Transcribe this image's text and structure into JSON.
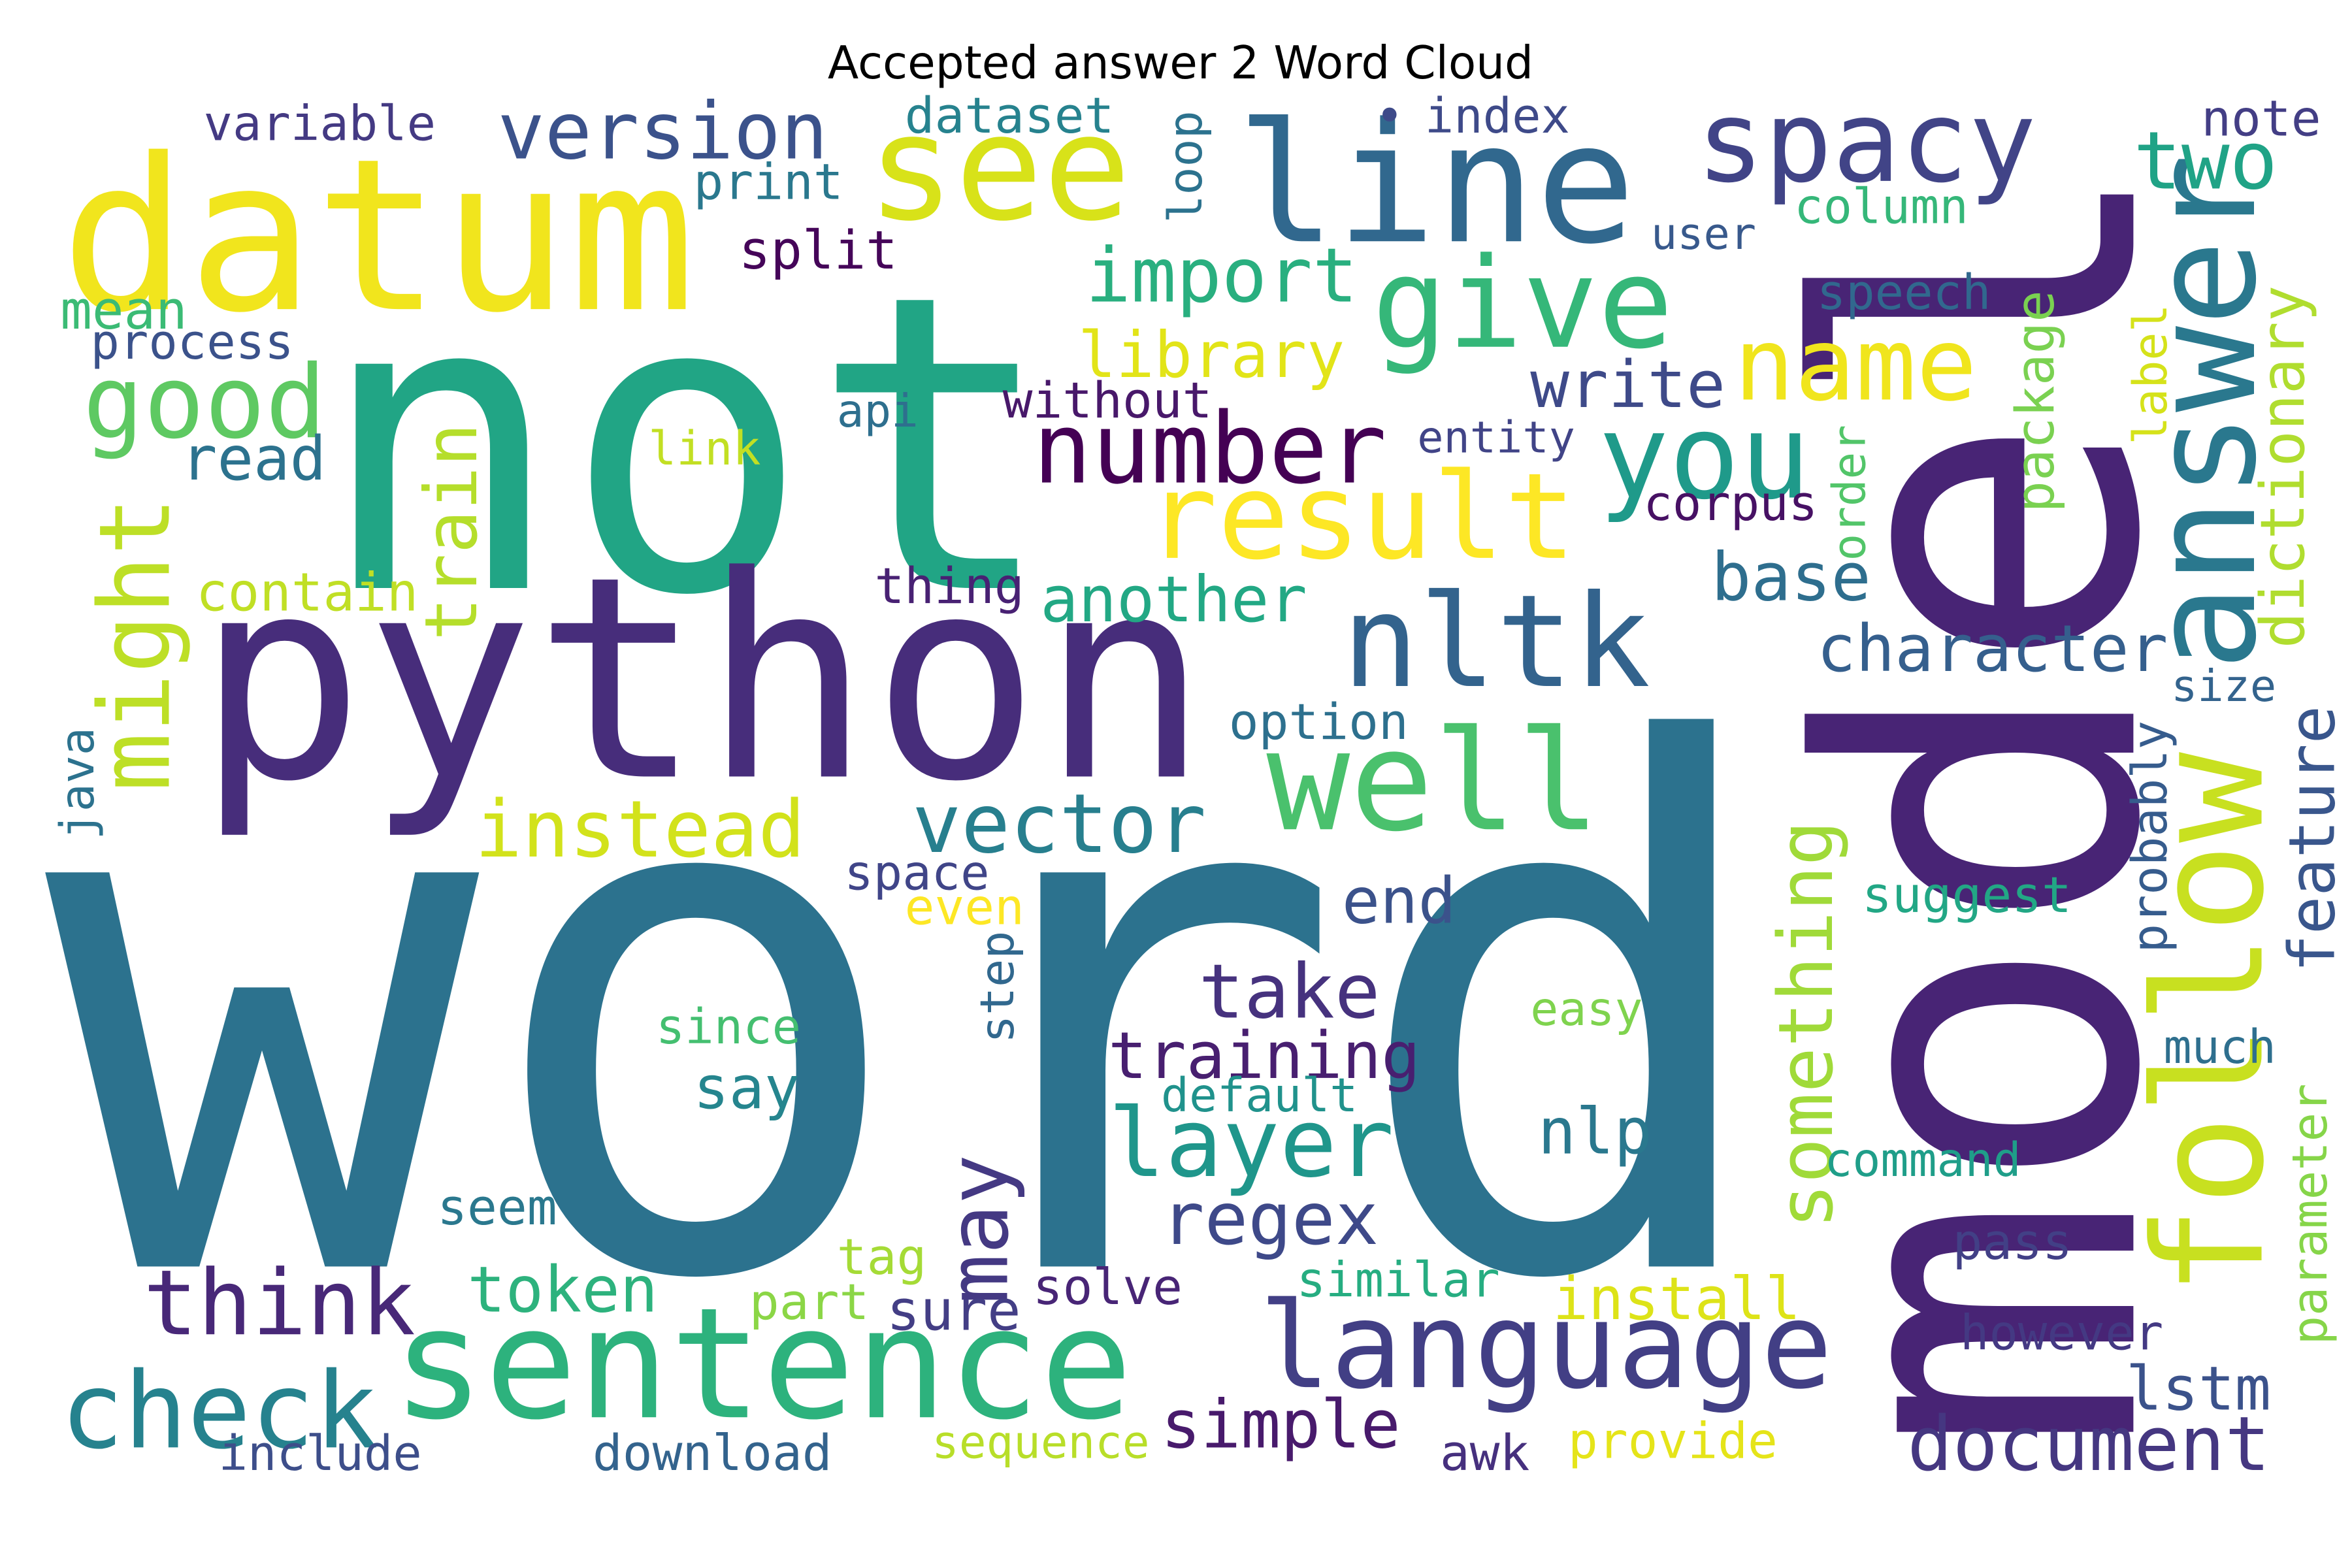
{
  "title": "Accepted answer 2 Word Cloud",
  "words": [
    {
      "text": "word",
      "color": "#2c728e"
    },
    {
      "text": "not",
      "color": "#21a585"
    },
    {
      "text": "python",
      "color": "#472d7b"
    },
    {
      "text": "model",
      "color": "#482475"
    },
    {
      "text": "datum",
      "color": "#f1e51d"
    },
    {
      "text": "line",
      "color": "#31688e"
    },
    {
      "text": "see",
      "color": "#d8e219"
    },
    {
      "text": "spacy",
      "color": "#414487"
    },
    {
      "text": "answer",
      "color": "#2a788e"
    },
    {
      "text": "follow",
      "color": "#c8e020"
    },
    {
      "text": "give",
      "color": "#35b779"
    },
    {
      "text": "sentence",
      "color": "#2db27d"
    },
    {
      "text": "language",
      "color": "#423f85"
    },
    {
      "text": "well",
      "color": "#4ac16d"
    },
    {
      "text": "nltk",
      "color": "#33638d"
    },
    {
      "text": "you",
      "color": "#1f9a8a"
    },
    {
      "text": "result",
      "color": "#fde725"
    },
    {
      "text": "number",
      "color": "#440154"
    },
    {
      "text": "name",
      "color": "#f0e51d"
    },
    {
      "text": "good",
      "color": "#5ec962"
    },
    {
      "text": "version",
      "color": "#3b528b"
    },
    {
      "text": "two",
      "color": "#20a386"
    },
    {
      "text": "import",
      "color": "#29af7f"
    },
    {
      "text": "library",
      "color": "#e2e418"
    },
    {
      "text": "might",
      "color": "#bddf26"
    },
    {
      "text": "train",
      "color": "#b5de2b"
    },
    {
      "text": "instead",
      "color": "#d2e21b"
    },
    {
      "text": "vector",
      "color": "#277f8e"
    },
    {
      "text": "write",
      "color": "#3e4a89"
    },
    {
      "text": "base",
      "color": "#2e6e8e"
    },
    {
      "text": "character",
      "color": "#355f8d"
    },
    {
      "text": "dictionary",
      "color": "#b0dd2f"
    },
    {
      "text": "feature",
      "color": "#39568c"
    },
    {
      "text": "something",
      "color": "#a0da39"
    },
    {
      "text": "take",
      "color": "#46327e"
    },
    {
      "text": "training",
      "color": "#481f70"
    },
    {
      "text": "layer",
      "color": "#1f968b"
    },
    {
      "text": "nlp",
      "color": "#2a788e"
    },
    {
      "text": "regex",
      "color": "#3e4989"
    },
    {
      "text": "may",
      "color": "#443983"
    },
    {
      "text": "think",
      "color": "#482878"
    },
    {
      "text": "check",
      "color": "#26828e"
    },
    {
      "text": "token",
      "color": "#2db27d"
    },
    {
      "text": "say",
      "color": "#25858e"
    },
    {
      "text": "install",
      "color": "#dde318"
    },
    {
      "text": "document",
      "color": "#453781"
    },
    {
      "text": "lstm",
      "color": "#3b528b"
    },
    {
      "text": "simple",
      "color": "#481a6c"
    },
    {
      "text": "another",
      "color": "#22a884"
    },
    {
      "text": "contain",
      "color": "#c0df25"
    },
    {
      "text": "read",
      "color": "#2c728e"
    },
    {
      "text": "api",
      "color": "#2e6f8e"
    },
    {
      "text": "without",
      "color": "#48186a"
    },
    {
      "text": "entity",
      "color": "#414487"
    },
    {
      "text": "corpus",
      "color": "#471164"
    },
    {
      "text": "link",
      "color": "#c2df23"
    },
    {
      "text": "split",
      "color": "#450559"
    },
    {
      "text": "print",
      "color": "#2a788e"
    },
    {
      "text": "dataset",
      "color": "#26828e"
    },
    {
      "text": "variable",
      "color": "#443a83"
    },
    {
      "text": "•",
      "color": "#3e4a89"
    },
    {
      "text": "index",
      "color": "#3e4a89"
    },
    {
      "text": "note",
      "color": "#433e85"
    },
    {
      "text": "loop",
      "color": "#2c728e"
    },
    {
      "text": "user",
      "color": "#38598c"
    },
    {
      "text": "column",
      "color": "#35b779"
    },
    {
      "text": "speech",
      "color": "#31688e"
    },
    {
      "text": "mean",
      "color": "#3bbb75"
    },
    {
      "text": "process",
      "color": "#3b528b"
    },
    {
      "text": "package",
      "color": "#7ad151"
    },
    {
      "text": "label",
      "color": "#d5e21a"
    },
    {
      "text": "order",
      "color": "#52c569"
    },
    {
      "text": "thing",
      "color": "#482173"
    },
    {
      "text": "option",
      "color": "#2d708e"
    },
    {
      "text": "size",
      "color": "#33638d"
    },
    {
      "text": "probably",
      "color": "#365c8d"
    },
    {
      "text": "java",
      "color": "#2c728e"
    },
    {
      "text": "space",
      "color": "#404588"
    },
    {
      "text": "even",
      "color": "#fde725"
    },
    {
      "text": "end",
      "color": "#3b528b"
    },
    {
      "text": "suggest",
      "color": "#22a785"
    },
    {
      "text": "step",
      "color": "#31688e"
    },
    {
      "text": "since",
      "color": "#44bf70"
    },
    {
      "text": "easy",
      "color": "#7fd34e"
    },
    {
      "text": "default",
      "color": "#20928c"
    },
    {
      "text": "much",
      "color": "#2e6f8e"
    },
    {
      "text": "parameter",
      "color": "#86d549"
    },
    {
      "text": "command",
      "color": "#1f9e89"
    },
    {
      "text": "seem",
      "color": "#2a788e"
    },
    {
      "text": "tag",
      "color": "#a5db36"
    },
    {
      "text": "pass",
      "color": "#424086"
    },
    {
      "text": "similar",
      "color": "#26ad81"
    },
    {
      "text": "part",
      "color": "#8bd646"
    },
    {
      "text": "sure",
      "color": "#433e85"
    },
    {
      "text": "solve",
      "color": "#482576"
    },
    {
      "text": "however",
      "color": "#443983"
    },
    {
      "text": "include",
      "color": "#3d4e8a"
    },
    {
      "text": "download",
      "color": "#33638d"
    },
    {
      "text": "sequence",
      "color": "#b8de29"
    },
    {
      "text": "awk",
      "color": "#46307e"
    },
    {
      "text": "provide",
      "color": "#e5e419"
    }
  ]
}
